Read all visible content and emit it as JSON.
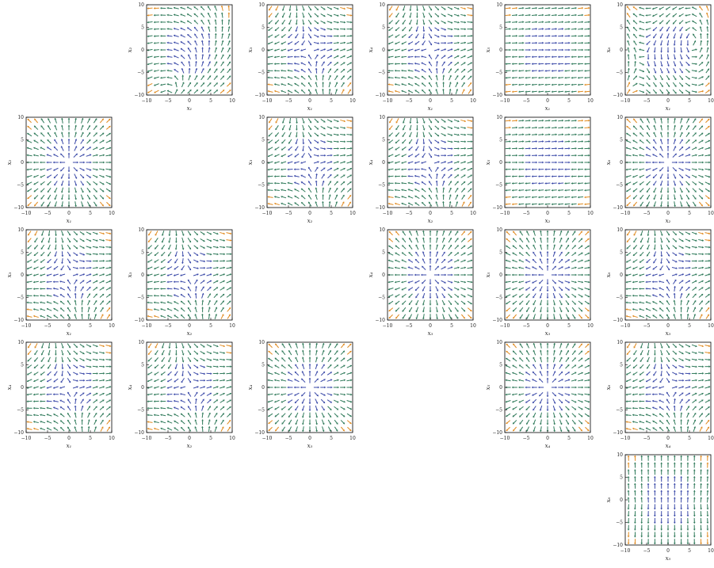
{
  "chart_data": {
    "type": "stream-plot-matrix",
    "grid": {
      "rows": 5,
      "cols": 6
    },
    "axis_range": [
      -10,
      10
    ],
    "x_ticks": [
      "−10",
      "−5",
      "0",
      "5",
      "10"
    ],
    "y_ticks": [
      "−10",
      "−5",
      "0",
      "5",
      "10"
    ],
    "colors": {
      "low": "#3b4aa8",
      "mid": "#2f7a5a",
      "high": "#e08a1f",
      "frame": "#000000"
    },
    "panels": [
      {
        "row": 0,
        "col": 1,
        "xlabel": "x₁",
        "ylabel": "x₂",
        "pattern": "two-centers-horizontal"
      },
      {
        "row": 0,
        "col": 2,
        "xlabel": "x₁",
        "ylabel": "x₃",
        "pattern": "saddle-diverging"
      },
      {
        "row": 0,
        "col": 3,
        "xlabel": "x₁",
        "ylabel": "x₄",
        "pattern": "saddle-diverging"
      },
      {
        "row": 0,
        "col": 4,
        "xlabel": "x₁",
        "ylabel": "x₅",
        "pattern": "horizontal-flow"
      },
      {
        "row": 0,
        "col": 5,
        "xlabel": "x₁",
        "ylabel": "x₆",
        "pattern": "two-centers-vertical"
      },
      {
        "row": 1,
        "col": 0,
        "xlabel": "x₁",
        "ylabel": "x₂",
        "pattern": "source-center"
      },
      {
        "row": 1,
        "col": 2,
        "xlabel": "x₂",
        "ylabel": "x₃",
        "pattern": "saddle-diverging"
      },
      {
        "row": 1,
        "col": 3,
        "xlabel": "x₂",
        "ylabel": "x₄",
        "pattern": "saddle-diverging"
      },
      {
        "row": 1,
        "col": 4,
        "xlabel": "x₂",
        "ylabel": "x₅",
        "pattern": "horizontal-flow"
      },
      {
        "row": 1,
        "col": 5,
        "xlabel": "x₂",
        "ylabel": "x₆",
        "pattern": "source-center"
      },
      {
        "row": 2,
        "col": 0,
        "xlabel": "x₁",
        "ylabel": "x₃",
        "pattern": "saddle-diverging"
      },
      {
        "row": 2,
        "col": 1,
        "xlabel": "x₂",
        "ylabel": "x₃",
        "pattern": "saddle-diverging"
      },
      {
        "row": 2,
        "col": 3,
        "xlabel": "x₃",
        "ylabel": "x₄",
        "pattern": "source-center"
      },
      {
        "row": 2,
        "col": 4,
        "xlabel": "x₃",
        "ylabel": "x₅",
        "pattern": "source-center"
      },
      {
        "row": 2,
        "col": 5,
        "xlabel": "x₃",
        "ylabel": "x₆",
        "pattern": "saddle-diverging"
      },
      {
        "row": 3,
        "col": 0,
        "xlabel": "x₁",
        "ylabel": "x₄",
        "pattern": "saddle-diverging"
      },
      {
        "row": 3,
        "col": 1,
        "xlabel": "x₂",
        "ylabel": "x₄",
        "pattern": "saddle-diverging"
      },
      {
        "row": 3,
        "col": 2,
        "xlabel": "x₃",
        "ylabel": "x₄",
        "pattern": "source-center"
      },
      {
        "row": 3,
        "col": 4,
        "xlabel": "x₄",
        "ylabel": "x₅",
        "pattern": "source-center"
      },
      {
        "row": 3,
        "col": 5,
        "xlabel": "x₄",
        "ylabel": "x₆",
        "pattern": "saddle-diverging"
      },
      {
        "row": 4,
        "col": 5,
        "xlabel": "x₅",
        "ylabel": "x₆",
        "pattern": "vertical-flow"
      }
    ]
  }
}
